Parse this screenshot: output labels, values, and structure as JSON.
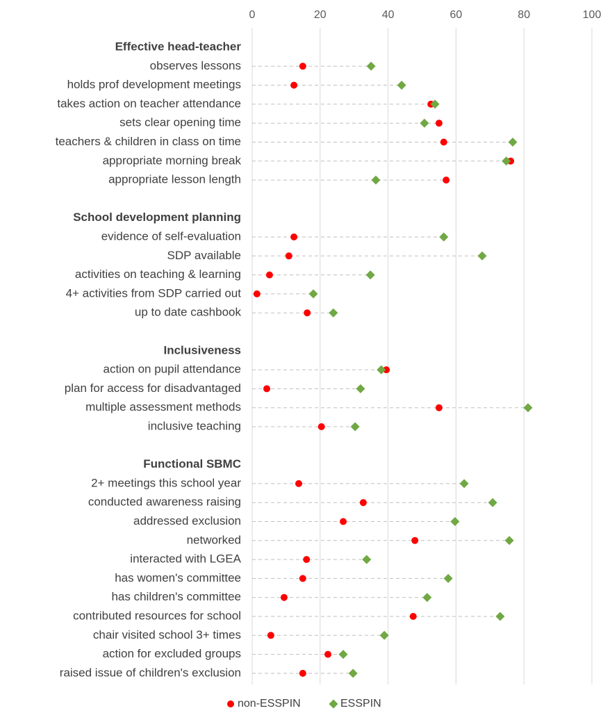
{
  "chart_data": {
    "type": "dot",
    "xlim": [
      0,
      100
    ],
    "xticks": [
      0,
      20,
      40,
      60,
      80,
      100
    ],
    "grid": true,
    "legend": "bottom",
    "series": [
      {
        "name": "non-ESSPIN",
        "color": "#ff0000",
        "marker": "circle"
      },
      {
        "name": "ESSPIN",
        "color": "#70a844",
        "marker": "diamond"
      }
    ],
    "groups": [
      {
        "name": "Effective head-teacher",
        "categories": [
          "observes lessons",
          "holds prof development meetings",
          "takes action on teacher attendance",
          "sets clear opening time",
          "teachers & children in class on time",
          "appropriate morning break",
          "appropriate lesson length"
        ],
        "series": [
          {
            "values": [
              14.9,
              12.3,
              52.6,
              55.0,
              56.4,
              76.1,
              57.1
            ]
          },
          {
            "values": [
              35.0,
              44.0,
              53.8,
              50.7,
              76.7,
              74.8,
              36.4
            ]
          }
        ]
      },
      {
        "name": "School development planning",
        "categories": [
          "evidence of self-evaluation",
          "SDP available",
          "activities on teaching & learning",
          "4+ activities from SDP carried out",
          "up to date cashbook"
        ],
        "series": [
          {
            "values": [
              12.3,
              10.8,
              5.1,
              1.4,
              16.2
            ]
          },
          {
            "values": [
              56.4,
              67.7,
              34.8,
              18.0,
              23.9
            ]
          }
        ]
      },
      {
        "name": "Inclusiveness",
        "categories": [
          "action on pupil attendance",
          "plan for access for disadvantaged",
          "multiple assessment methods",
          "inclusive teaching"
        ],
        "series": [
          {
            "values": [
              39.5,
              4.3,
              55.0,
              20.4
            ]
          },
          {
            "values": [
              38.0,
              31.9,
              81.2,
              30.3
            ]
          }
        ]
      },
      {
        "name": "Functional SBMC",
        "categories": [
          "2+ meetings this school year",
          "conducted awareness raising",
          "addressed exclusion",
          "networked",
          "interacted with LGEA",
          "has women's committee",
          "has children's committee",
          "contributed resources for school",
          "chair visited school 3+ times",
          "action for excluded groups",
          "raised issue of children's exclusion"
        ],
        "series": [
          {
            "values": [
              13.7,
              32.7,
              26.8,
              47.9,
              16.0,
              14.9,
              9.4,
              47.4,
              5.5,
              22.3,
              14.9
            ]
          },
          {
            "values": [
              62.4,
              70.8,
              59.7,
              75.7,
              33.7,
              57.7,
              51.5,
              73.0,
              38.9,
              26.8,
              29.7
            ]
          }
        ]
      }
    ]
  }
}
